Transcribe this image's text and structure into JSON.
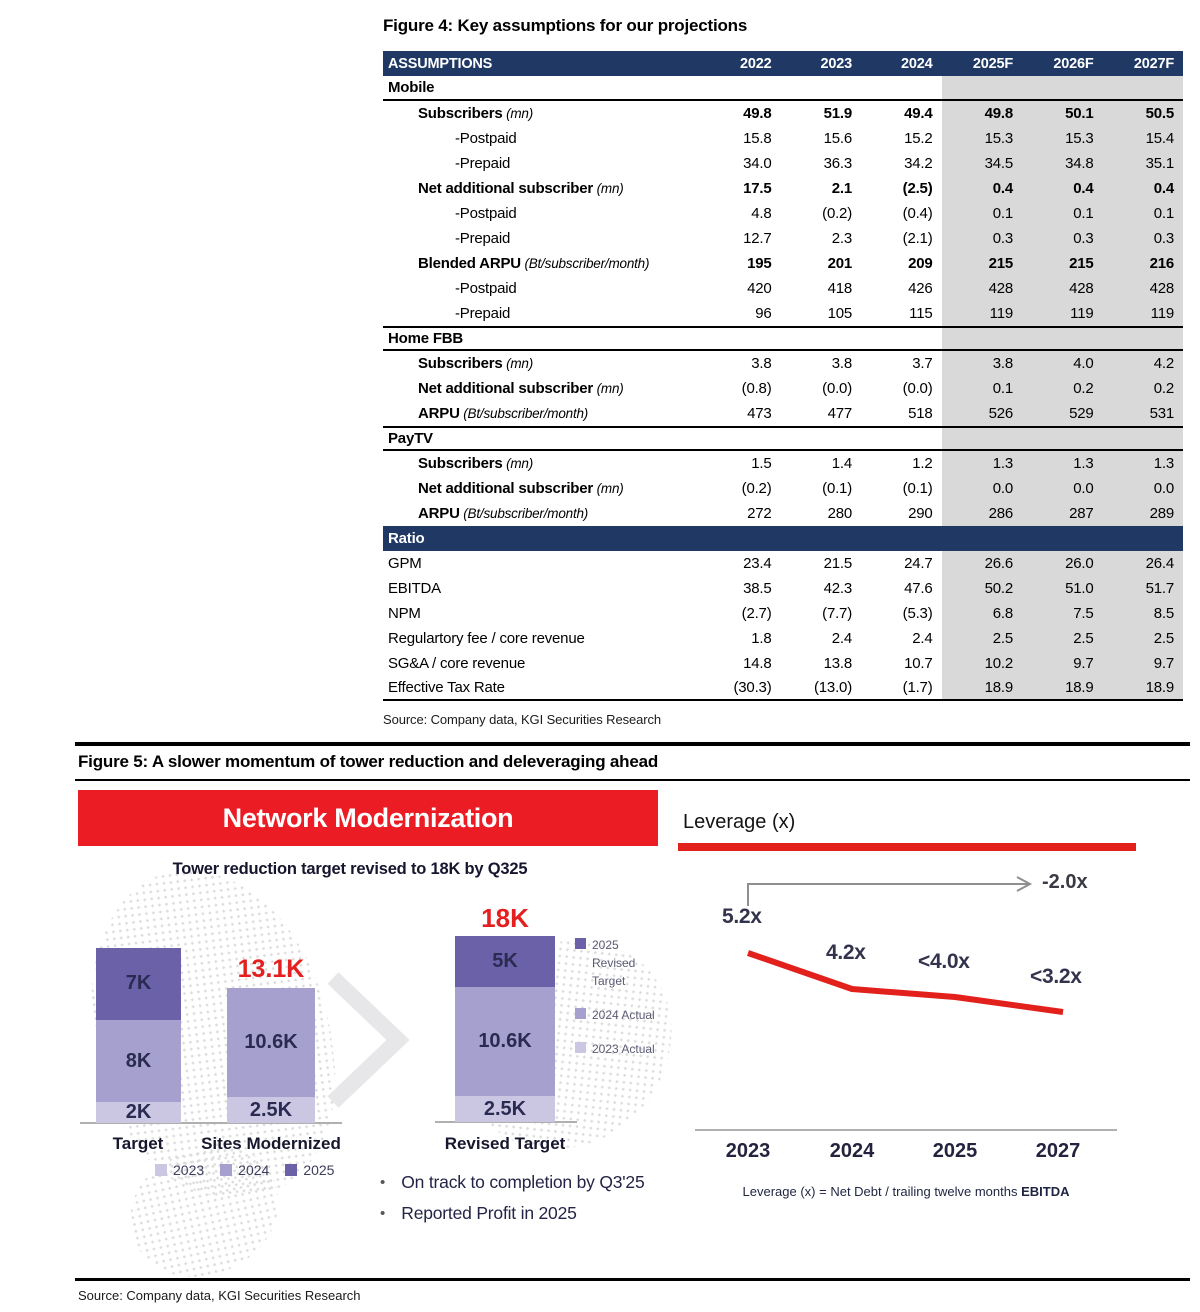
{
  "colors": {
    "navy": "#1F3864",
    "shade_gray": "#D9D9D9",
    "banner_red": "#EC1C24",
    "accent_red": "#E3201F",
    "purple_light": "#CBC7E3",
    "purple_medium": "#A6A0CE",
    "purple_dark": "#6A61A9"
  },
  "figure4": {
    "title": "Figure 4: Key assumptions for our projections",
    "source": "Source: Company data, KGI Securities Research",
    "header": [
      "ASSUMPTIONS",
      "2022",
      "2023",
      "2024",
      "2025F",
      "2026F",
      "2027F"
    ],
    "rows": [
      {
        "section": "Mobile"
      },
      {
        "label": "Subscribers",
        "unit": "(mn)",
        "indent": 1,
        "bold_label": true,
        "bold_values": true,
        "values": [
          "49.8",
          "51.9",
          "49.4",
          "49.8",
          "50.1",
          "50.5"
        ]
      },
      {
        "label": "-Postpaid",
        "indent": 2,
        "values": [
          "15.8",
          "15.6",
          "15.2",
          "15.3",
          "15.3",
          "15.4"
        ]
      },
      {
        "label": "-Prepaid",
        "indent": 2,
        "values": [
          "34.0",
          "36.3",
          "34.2",
          "34.5",
          "34.8",
          "35.1"
        ]
      },
      {
        "label": "Net additional subscriber",
        "unit": "(mn)",
        "indent": 1,
        "bold_label": true,
        "bold_values": true,
        "values": [
          "17.5",
          "2.1",
          "(2.5)",
          "0.4",
          "0.4",
          "0.4"
        ]
      },
      {
        "label": "-Postpaid",
        "indent": 2,
        "values": [
          "4.8",
          "(0.2)",
          "(0.4)",
          "0.1",
          "0.1",
          "0.1"
        ]
      },
      {
        "label": "-Prepaid",
        "indent": 2,
        "values": [
          "12.7",
          "2.3",
          "(2.1)",
          "0.3",
          "0.3",
          "0.3"
        ]
      },
      {
        "label": "Blended ARPU",
        "unit": "(Bt/subscriber/month)",
        "indent": 1,
        "bold_label": true,
        "bold_values": true,
        "values": [
          "195",
          "201",
          "209",
          "215",
          "215",
          "216"
        ]
      },
      {
        "label": "-Postpaid",
        "indent": 2,
        "values": [
          "420",
          "418",
          "426",
          "428",
          "428",
          "428"
        ]
      },
      {
        "label": "-Prepaid",
        "indent": 2,
        "values": [
          "96",
          "105",
          "115",
          "119",
          "119",
          "119"
        ]
      },
      {
        "section": "Home FBB",
        "border_top": true
      },
      {
        "label": "Subscribers",
        "unit": "(mn)",
        "indent": 1,
        "bold_label": true,
        "values": [
          "3.8",
          "3.8",
          "3.7",
          "3.8",
          "4.0",
          "4.2"
        ]
      },
      {
        "label": "Net additional subscriber",
        "unit": "(mn)",
        "indent": 1,
        "bold_label": true,
        "values": [
          "(0.8)",
          "(0.0)",
          "(0.0)",
          "0.1",
          "0.2",
          "0.2"
        ]
      },
      {
        "label": "ARPU",
        "unit": "(Bt/subscriber/month)",
        "indent": 1,
        "bold_label": true,
        "values": [
          "473",
          "477",
          "518",
          "526",
          "529",
          "531"
        ]
      },
      {
        "section": "PayTV",
        "border_top": true
      },
      {
        "label": "Subscribers",
        "unit": "(mn)",
        "indent": 1,
        "bold_label": true,
        "values": [
          "1.5",
          "1.4",
          "1.2",
          "1.3",
          "1.3",
          "1.3"
        ]
      },
      {
        "label": "Net additional subscriber",
        "unit": "(mn)",
        "indent": 1,
        "bold_label": true,
        "values": [
          "(0.2)",
          "(0.1)",
          "(0.1)",
          "0.0",
          "0.0",
          "0.0"
        ]
      },
      {
        "label": "ARPU",
        "unit": "(Bt/subscriber/month)",
        "indent": 1,
        "bold_label": true,
        "values": [
          "272",
          "280",
          "290",
          "286",
          "287",
          "289"
        ]
      },
      {
        "band": "Ratio"
      },
      {
        "label": "GPM",
        "values": [
          "23.4",
          "21.5",
          "24.7",
          "26.6",
          "26.0",
          "26.4"
        ]
      },
      {
        "label": "EBITDA",
        "values": [
          "38.5",
          "42.3",
          "47.6",
          "50.2",
          "51.0",
          "51.7"
        ]
      },
      {
        "label": "NPM",
        "values": [
          "(2.7)",
          "(7.7)",
          "(5.3)",
          "6.8",
          "7.5",
          "8.5"
        ]
      },
      {
        "label": "Regulartory fee / core revenue",
        "values": [
          "1.8",
          "2.4",
          "2.4",
          "2.5",
          "2.5",
          "2.5"
        ]
      },
      {
        "label": "SG&A / core revenue",
        "values": [
          "14.8",
          "13.8",
          "10.7",
          "10.2",
          "9.7",
          "9.7"
        ]
      },
      {
        "label": "Effective Tax Rate",
        "last": true,
        "values": [
          "(30.3)",
          "(13.0)",
          "(1.7)",
          "18.9",
          "18.9",
          "18.9"
        ]
      }
    ]
  },
  "figure5": {
    "title": "Figure 5: A slower momentum of tower reduction and deleveraging ahead",
    "source": "Source: Company data, KGI Securities Research",
    "left": {
      "banner": "Network Modernization",
      "chart_title": "Tower reduction target revised to 18K by Q325",
      "bars": [
        {
          "name": "Target",
          "segments": [
            {
              "label": "2K",
              "value": 2,
              "tone": "light"
            },
            {
              "label": "8K",
              "value": 8,
              "tone": "medium"
            },
            {
              "label": "7K",
              "value": 7,
              "tone": "dark"
            }
          ]
        },
        {
          "name": "Sites Modernized",
          "total_label": "13.1K",
          "segments": [
            {
              "label": "2.5K",
              "value": 2.5,
              "tone": "light"
            },
            {
              "label": "10.6K",
              "value": 10.6,
              "tone": "medium"
            }
          ]
        },
        {
          "name": "Revised Target",
          "total_label": "18K",
          "segments": [
            {
              "label": "2.5K",
              "value": 2.5,
              "tone": "light"
            },
            {
              "label": "10.6K",
              "value": 10.6,
              "tone": "medium"
            },
            {
              "label": "5K",
              "value": 5,
              "tone": "dark"
            }
          ]
        }
      ],
      "legend_bottom": [
        {
          "tone": "light",
          "label": "2023"
        },
        {
          "tone": "medium",
          "label": "2024"
        },
        {
          "tone": "dark",
          "label": "2025"
        }
      ],
      "legend_right": [
        {
          "tone": "dark",
          "label": "2025 Revised Target"
        },
        {
          "tone": "medium",
          "label": "2024 Actual"
        },
        {
          "tone": "light",
          "label": "2023 Actual"
        }
      ],
      "bullets": [
        "On track to completion by Q3'25",
        "Reported Profit in 2025"
      ]
    },
    "right": {
      "title": "Leverage (x)",
      "target_label": "-2.0x",
      "points": [
        {
          "year": "2023",
          "label": "5.2x",
          "value": 5.2
        },
        {
          "year": "2024",
          "label": "4.2x",
          "value": 4.2
        },
        {
          "year": "2025",
          "label": "<4.0x",
          "value": 4.0
        },
        {
          "year": "2027",
          "label": "<3.2x",
          "value": 3.2
        }
      ],
      "footnote_text": "Leverage (x) = Net Debt / trailing twelve months ",
      "footnote_bold": "EBITDA"
    }
  },
  "chart_data": [
    {
      "type": "bar",
      "subtype": "stacked",
      "title": "Tower reduction target revised to 18K by Q325",
      "categories": [
        "Target",
        "Sites Modernized",
        "Revised Target"
      ],
      "series": [
        {
          "name": "2023",
          "values": [
            2,
            2.5,
            2.5
          ]
        },
        {
          "name": "2024",
          "values": [
            8,
            10.6,
            10.6
          ]
        },
        {
          "name": "2025",
          "values": [
            7,
            0,
            5
          ]
        }
      ],
      "total_labels": [
        null,
        "13.1K",
        "18K"
      ],
      "unit": "K towers",
      "legend_position": "bottom"
    },
    {
      "type": "line",
      "title": "Leverage (x)",
      "x": [
        "2023",
        "2024",
        "2025",
        "2027"
      ],
      "values": [
        5.2,
        4.2,
        4.0,
        3.2
      ],
      "point_labels": [
        "5.2x",
        "4.2x",
        "<4.0x",
        "<3.2x"
      ],
      "annotation": "-2.0x",
      "footnote": "Leverage (x) = Net Debt / trailing twelve months EBITDA",
      "grid": false
    },
    {
      "type": "table",
      "title": "Figure 4: Key assumptions for our projections",
      "columns": [
        "ASSUMPTIONS",
        "2022",
        "2023",
        "2024",
        "2025F",
        "2026F",
        "2027F"
      ]
    }
  ]
}
